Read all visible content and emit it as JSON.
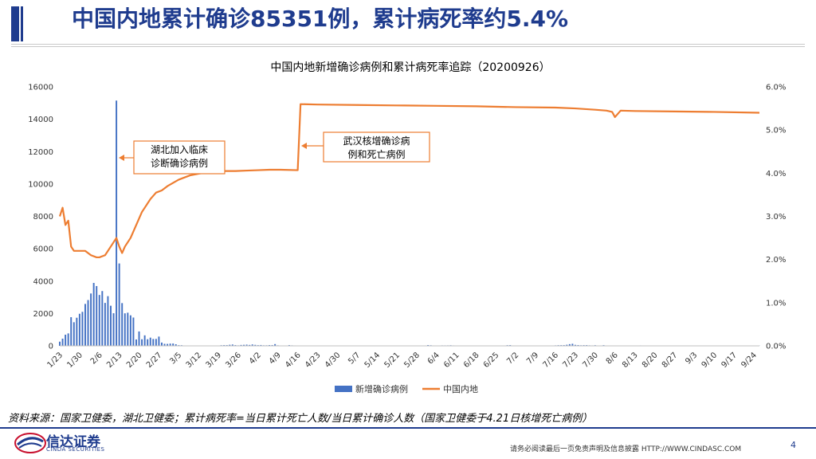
{
  "header": {
    "title": "中国内地累计确诊85351例，累计病死率约5.4%"
  },
  "source_note": "资料来源：国家卫健委，湖北卫健委；累计病死率=当日累计死亡人数/当日累计确诊人数（国家卫健委于4.21日核增死亡病例）",
  "footer": {
    "logo_text": "信达证券",
    "logo_sub": "CINDA SECURITIES",
    "disclaimer": "请务必阅读最后一页免责声明及信息披露  HTTP://WWW.CINDASC.COM",
    "page_number": "4"
  },
  "colors": {
    "brand": "#1f3c8e",
    "bar": "#4472c4",
    "line": "#ed7d31"
  },
  "chart_data": {
    "type": "bar+line",
    "title": "中国内地新增确诊病例和累计病死率追踪（20200926）",
    "y_left": {
      "range": [
        0,
        16000
      ],
      "ticks": [
        "0",
        "2000",
        "4000",
        "6000",
        "8000",
        "10000",
        "12000",
        "14000",
        "16000"
      ]
    },
    "y_right": {
      "range": [
        0,
        6
      ],
      "ticks": [
        "0.0%",
        "1.0%",
        "2.0%",
        "3.0%",
        "4.0%",
        "5.0%",
        "6.0%"
      ]
    },
    "x_tick_labels": [
      "1/23",
      "1/30",
      "2/6",
      "2/13",
      "2/20",
      "2/27",
      "3/5",
      "3/12",
      "3/19",
      "3/26",
      "4/2",
      "4/9",
      "4/16",
      "4/23",
      "4/30",
      "5/7",
      "5/14",
      "5/21",
      "5/28",
      "6/4",
      "6/11",
      "6/18",
      "6/25",
      "7/2",
      "7/9",
      "7/16",
      "7/23",
      "7/30",
      "8/6",
      "8/13",
      "8/20",
      "8/27",
      "9/3",
      "9/10",
      "9/17",
      "9/24"
    ],
    "legend": [
      "新增确诊病例",
      "中国内地"
    ],
    "legend_position": "bottom",
    "annotations": [
      {
        "text_lines": [
          "湖北加入临床",
          "诊断确诊病例"
        ],
        "date": "2/12"
      },
      {
        "text_lines": [
          "武汉核增确诊病",
          "例和死亡病例"
        ],
        "date": "4/17"
      }
    ],
    "bars": {
      "name": "新增确诊病例",
      "start_date": "1/23",
      "values": [
        259,
        444,
        688,
        769,
        1771,
        1459,
        1737,
        1982,
        2102,
        2590,
        2829,
        3235,
        3887,
        3694,
        3143,
        3385,
        2652,
        3070,
        2478,
        2015,
        15152,
        5090,
        2641,
        2009,
        2048,
        1886,
        1749,
        394,
        889,
        406,
        648,
        409,
        508,
        425,
        428,
        573,
        202,
        125,
        119,
        139,
        143,
        99,
        44,
        40,
        19,
        24,
        15,
        20,
        11,
        16,
        14,
        13,
        8,
        17,
        16,
        16,
        19,
        39,
        47,
        46,
        67,
        82,
        47,
        31,
        56,
        64,
        75,
        57,
        86,
        61,
        44,
        52,
        34,
        35,
        48,
        47,
        108,
        32,
        12,
        6,
        7,
        46,
        30,
        25,
        12,
        11,
        23,
        11,
        11,
        15,
        12,
        6,
        4,
        0,
        1,
        2,
        3,
        1,
        7,
        3,
        4,
        2,
        3,
        7,
        2,
        2,
        2,
        3,
        5,
        4,
        6,
        7,
        4,
        3,
        2,
        6,
        4,
        3,
        2,
        3,
        7,
        2,
        1,
        9,
        11,
        6,
        3,
        4,
        8,
        19,
        49,
        36,
        17,
        24,
        19,
        29,
        28,
        30,
        36,
        26,
        19,
        13,
        9,
        10,
        14,
        6,
        8,
        14,
        21,
        16,
        19,
        20,
        17,
        10,
        6,
        9,
        17,
        24,
        40,
        46,
        22,
        11,
        13,
        14,
        7,
        8,
        10,
        14,
        11,
        9,
        18,
        16,
        19,
        22,
        24,
        31,
        41,
        43,
        46,
        68,
        105,
        127,
        61,
        49,
        36,
        43,
        45,
        32,
        27,
        40,
        23,
        25,
        42,
        22,
        11,
        19,
        22,
        20,
        22,
        14,
        11,
        15,
        9,
        12,
        22,
        26,
        18,
        9,
        14,
        9,
        9,
        7,
        11,
        12,
        8,
        12,
        9,
        12,
        11,
        10,
        9,
        11,
        9,
        8,
        6,
        13,
        10,
        15,
        13,
        7,
        8,
        11,
        14,
        10,
        12,
        18,
        15,
        9,
        8,
        7,
        6,
        11,
        8,
        10,
        11,
        12,
        14,
        9,
        10,
        12,
        8
      ]
    },
    "line": {
      "name": "中国内地",
      "unit": "%",
      "points": [
        [
          "1/23",
          3.0
        ],
        [
          "1/24",
          3.2
        ],
        [
          "1/25",
          2.8
        ],
        [
          "1/26",
          2.9
        ],
        [
          "1/27",
          2.3
        ],
        [
          "1/28",
          2.2
        ],
        [
          "1/30",
          2.2
        ],
        [
          "2/1",
          2.2
        ],
        [
          "2/3",
          2.1
        ],
        [
          "2/5",
          2.05
        ],
        [
          "2/6",
          2.05
        ],
        [
          "2/8",
          2.1
        ],
        [
          "2/10",
          2.3
        ],
        [
          "2/12",
          2.5
        ],
        [
          "2/13",
          2.3
        ],
        [
          "2/14",
          2.15
        ],
        [
          "2/15",
          2.3
        ],
        [
          "2/17",
          2.5
        ],
        [
          "2/19",
          2.8
        ],
        [
          "2/21",
          3.1
        ],
        [
          "2/22",
          3.2
        ],
        [
          "2/24",
          3.4
        ],
        [
          "2/26",
          3.55
        ],
        [
          "2/28",
          3.6
        ],
        [
          "3/1",
          3.7
        ],
        [
          "3/5",
          3.85
        ],
        [
          "3/9",
          3.95
        ],
        [
          "3/13",
          4.0
        ],
        [
          "3/17",
          4.03
        ],
        [
          "3/21",
          4.05
        ],
        [
          "3/25",
          4.05
        ],
        [
          "3/29",
          4.06
        ],
        [
          "4/2",
          4.07
        ],
        [
          "4/6",
          4.08
        ],
        [
          "4/10",
          4.08
        ],
        [
          "4/16",
          4.07
        ],
        [
          "4/17",
          5.6
        ],
        [
          "4/23",
          5.59
        ],
        [
          "5/7",
          5.58
        ],
        [
          "5/21",
          5.57
        ],
        [
          "6/4",
          5.56
        ],
        [
          "6/18",
          5.55
        ],
        [
          "7/2",
          5.53
        ],
        [
          "7/16",
          5.52
        ],
        [
          "7/23",
          5.5
        ],
        [
          "7/30",
          5.47
        ],
        [
          "8/3",
          5.45
        ],
        [
          "8/5",
          5.42
        ],
        [
          "8/6",
          5.3
        ],
        [
          "8/8",
          5.45
        ],
        [
          "8/13",
          5.44
        ],
        [
          "8/27",
          5.43
        ],
        [
          "9/10",
          5.42
        ],
        [
          "9/26",
          5.4
        ]
      ]
    }
  }
}
